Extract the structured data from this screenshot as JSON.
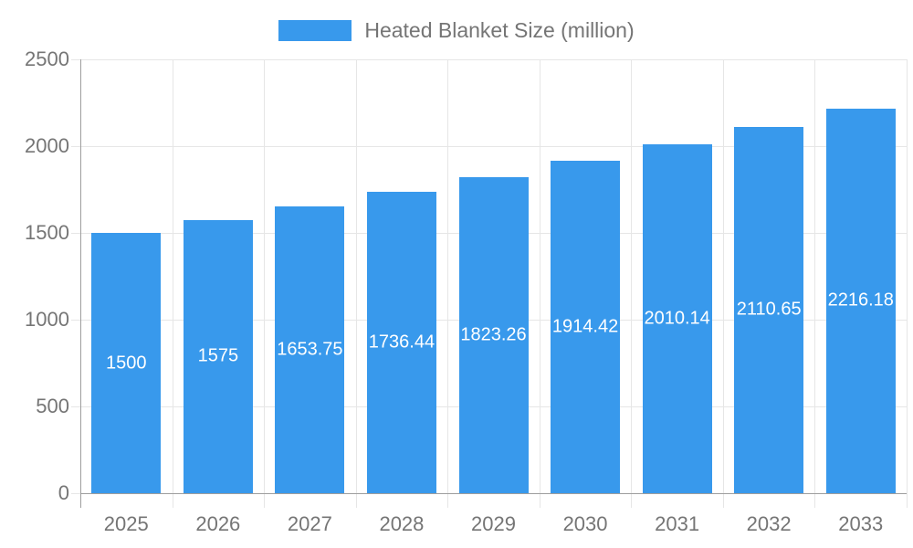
{
  "chart_data": {
    "type": "bar",
    "title": "",
    "legend_label": "Heated Blanket Size (million)",
    "legend_position": "top-center",
    "categories": [
      "2025",
      "2026",
      "2027",
      "2028",
      "2029",
      "2030",
      "2031",
      "2032",
      "2033"
    ],
    "values": [
      1500,
      1575,
      1653.75,
      1736.44,
      1823.26,
      1914.42,
      2010.14,
      2110.65,
      2216.18
    ],
    "value_labels": [
      "1500",
      "1575",
      "1653.75",
      "1736.44",
      "1823.26",
      "1914.42",
      "2010.14",
      "2110.65",
      "2216.18"
    ],
    "xlabel": "",
    "ylabel": "",
    "ylim": [
      0,
      2500
    ],
    "ytick_interval": 500,
    "ytick_labels": [
      "0",
      "500",
      "1000",
      "1500",
      "2000",
      "2500"
    ],
    "grid": true,
    "colors": {
      "bar": "#3899EC",
      "axis_text": "#757575",
      "value_label_text": "#ffffff",
      "gridline": "#e6e6e6",
      "axis_line": "#9e9e9e",
      "background": "#ffffff"
    }
  }
}
